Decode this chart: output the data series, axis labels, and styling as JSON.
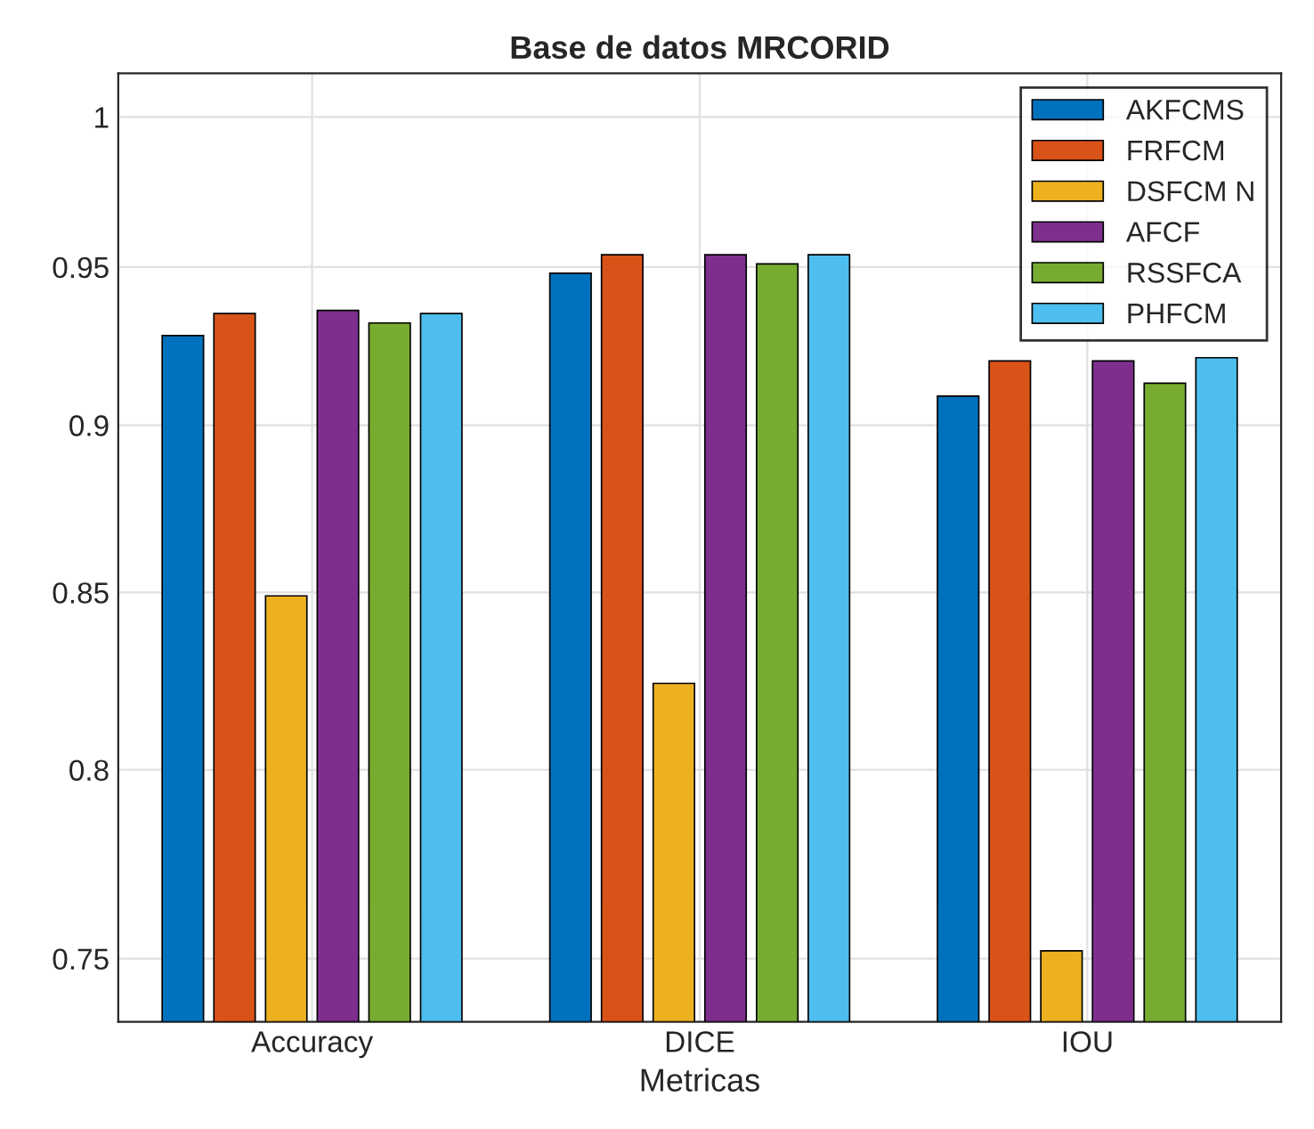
{
  "chart_data": {
    "type": "bar",
    "title": "Base de datos MRCORID",
    "xlabel": "Metricas",
    "categories": [
      "Accuracy",
      "DICE",
      "IOU"
    ],
    "series": [
      {
        "name": "AKFCMS",
        "color": "#0072bd",
        "values": [
          0.928,
          0.948,
          0.909
        ]
      },
      {
        "name": "FRFCM",
        "color": "#d95319",
        "values": [
          0.935,
          0.954,
          0.92
        ]
      },
      {
        "name": "DSFCM N",
        "color": "#edb120",
        "values": [
          0.849,
          0.824,
          0.752
        ]
      },
      {
        "name": "AFCF",
        "color": "#7e2f8e",
        "values": [
          0.936,
          0.954,
          0.92
        ]
      },
      {
        "name": "RSSFCA",
        "color": "#77ac30",
        "values": [
          0.932,
          0.951,
          0.913
        ]
      },
      {
        "name": "PHFCM",
        "color": "#4dbeee",
        "values": [
          0.935,
          0.954,
          0.921
        ]
      }
    ],
    "log": "y",
    "ylim": [
      0.734,
      1.015
    ],
    "yticks": [
      0.75,
      0.8,
      0.85,
      0.9,
      0.95,
      1
    ],
    "grid": true,
    "legend": "top right"
  }
}
